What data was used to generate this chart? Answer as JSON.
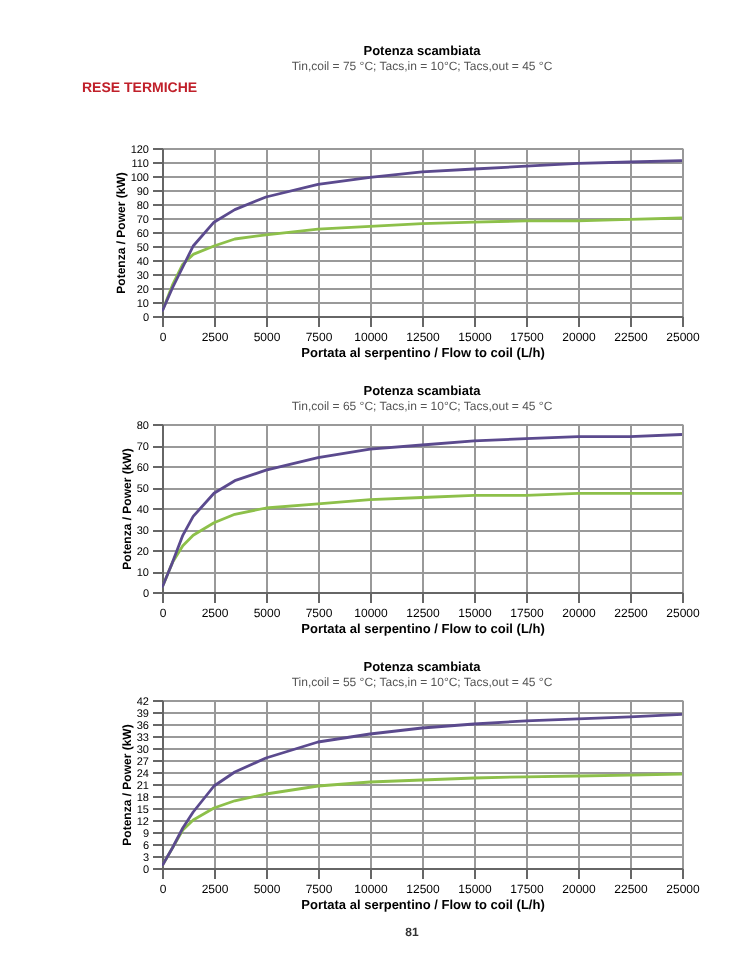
{
  "chart_data": [
    {
      "type": "line",
      "title": "Potenza scambiata",
      "subtitle": "Tin,coil = 75 °C; Tacs,in = 10°C; Tacs,out = 45 °C",
      "xlabel": "Portata al serpentino / Flow to coil (L/h)",
      "ylabel": "Potenza / Power (kW)",
      "annotations": [
        "RESE TERMICHE"
      ],
      "xlim": [
        0,
        25000
      ],
      "xticks": [
        0,
        2500,
        5000,
        7500,
        10000,
        12500,
        15000,
        17500,
        20000,
        22500,
        25000
      ],
      "ylim": [
        0,
        120
      ],
      "yticks": [
        0,
        10,
        20,
        30,
        40,
        50,
        60,
        70,
        80,
        90,
        100,
        110,
        120
      ],
      "grid": true,
      "marker": "none",
      "line_style": "solid",
      "x": [
        0,
        500,
        1000,
        1500,
        2500,
        3500,
        5000,
        7500,
        10000,
        12500,
        15000,
        17500,
        20000,
        22500,
        25000
      ],
      "series": [
        {
          "color": "#8dc04a",
          "values": [
            3,
            22,
            37,
            44,
            50,
            55,
            58,
            62,
            64,
            66,
            67,
            68,
            68,
            69,
            70
          ]
        },
        {
          "color": "#5b4a8e",
          "values": [
            3,
            20,
            35,
            50,
            67,
            76,
            85,
            94,
            99,
            103,
            105,
            107,
            109,
            110,
            111
          ]
        }
      ]
    },
    {
      "type": "line",
      "title": "Potenza scambiata",
      "subtitle": "Tin,coil = 65 °C; Tacs,in = 10°C; Tacs,out = 45 °C",
      "xlabel": "Portata al serpentino / Flow to coil (L/h)",
      "ylabel": "Potenza / Power (kW)",
      "xlim": [
        0,
        25000
      ],
      "xticks": [
        0,
        2500,
        5000,
        7500,
        10000,
        12500,
        15000,
        17500,
        20000,
        22500,
        25000
      ],
      "ylim": [
        0,
        80
      ],
      "yticks": [
        0,
        10,
        20,
        30,
        40,
        50,
        60,
        70,
        80
      ],
      "grid": true,
      "marker": "none",
      "line_style": "solid",
      "x": [
        0,
        500,
        1000,
        1500,
        2500,
        3500,
        5000,
        7500,
        10000,
        12500,
        15000,
        17500,
        20000,
        22500,
        25000
      ],
      "series": [
        {
          "color": "#8dc04a",
          "values": [
            2,
            14,
            22,
            27,
            33,
            37,
            40,
            42,
            44,
            45,
            46,
            46,
            47,
            47,
            47
          ]
        },
        {
          "color": "#5b4a8e",
          "values": [
            2,
            14,
            27,
            36,
            47,
            53,
            58,
            64,
            68,
            70,
            72,
            73,
            74,
            74,
            75
          ]
        }
      ]
    },
    {
      "type": "line",
      "title": "Potenza scambiata",
      "subtitle": "Tin,coil = 55 °C; Tacs,in = 10°C; Tacs,out = 45 °C",
      "xlabel": "Portata al serpentino / Flow to coil (L/h)",
      "ylabel": "Potenza / Power (kW)",
      "annotations": [
        "81"
      ],
      "xlim": [
        0,
        25000
      ],
      "xticks": [
        0,
        2500,
        5000,
        7500,
        10000,
        12500,
        15000,
        17500,
        20000,
        22500,
        25000
      ],
      "ylim": [
        0,
        42
      ],
      "yticks": [
        0,
        3,
        6,
        9,
        12,
        15,
        18,
        21,
        24,
        27,
        30,
        33,
        36,
        39,
        42
      ],
      "grid": true,
      "marker": "none",
      "line_style": "solid",
      "x": [
        0,
        500,
        1000,
        1500,
        2500,
        3500,
        5000,
        7500,
        10000,
        12500,
        15000,
        17500,
        20000,
        22500,
        25000
      ],
      "series": [
        {
          "color": "#8dc04a",
          "values": [
            0.5,
            5,
            9.5,
            12,
            15,
            16.8,
            18.5,
            20.5,
            21.5,
            22,
            22.5,
            22.8,
            23,
            23.2,
            23.5
          ]
        },
        {
          "color": "#5b4a8e",
          "values": [
            0.5,
            5,
            10,
            14,
            20.5,
            24,
            27.5,
            31.5,
            33.5,
            35,
            36,
            36.8,
            37.3,
            37.8,
            38.4
          ]
        }
      ]
    }
  ]
}
